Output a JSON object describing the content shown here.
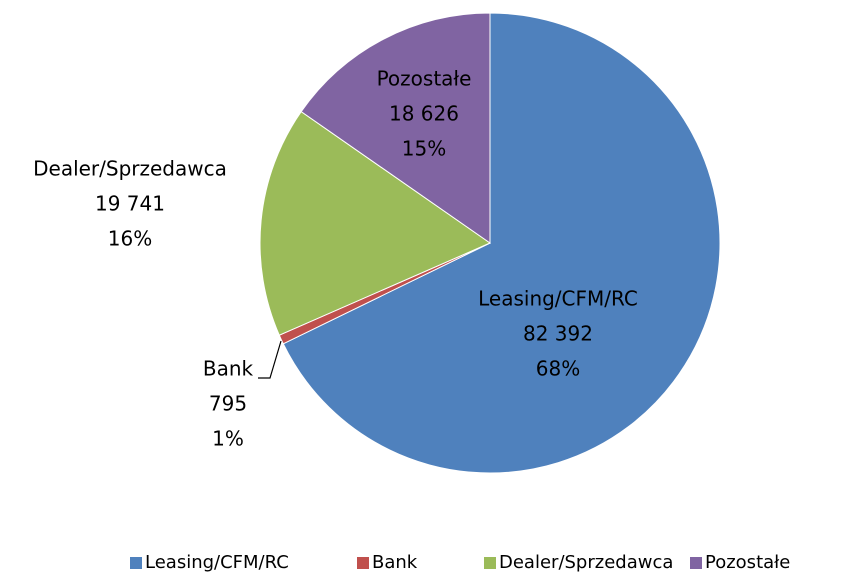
{
  "chart_data": {
    "type": "pie",
    "categories": [
      "Leasing/CFM/RC",
      "Bank",
      "Dealer/Sprzedawca",
      "Pozostałe"
    ],
    "values": [
      82392,
      795,
      19741,
      18626
    ],
    "value_labels": [
      "82 392",
      "795",
      "19 741",
      "18 626"
    ],
    "percent_labels": [
      "68%",
      "1%",
      "16%",
      "15%"
    ],
    "colors": [
      "#4f81bd",
      "#c0504d",
      "#9bbb59",
      "#8064a2"
    ],
    "legend": "bottom"
  }
}
